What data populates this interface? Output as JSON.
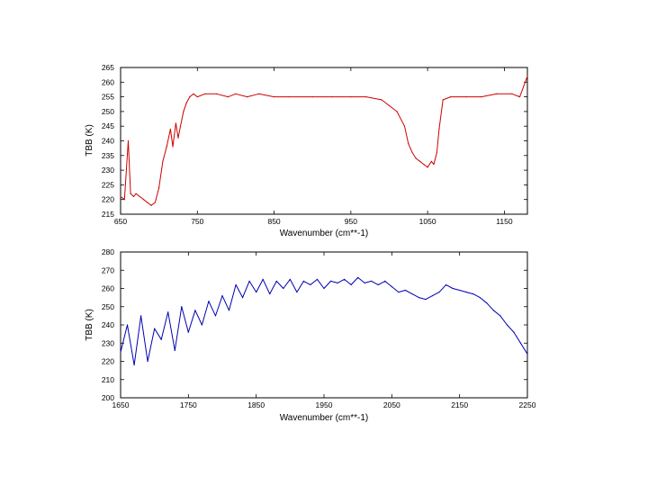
{
  "chart_data": [
    {
      "type": "line",
      "title": "",
      "xlabel": "Wavenumber (cm**-1)",
      "ylabel": "TBB (K)",
      "xlim": [
        650,
        1180
      ],
      "ylim": [
        215,
        265
      ],
      "xticks": [
        650,
        750,
        850,
        950,
        1050,
        1150
      ],
      "yticks": [
        215,
        220,
        225,
        230,
        235,
        240,
        245,
        250,
        255,
        260,
        265
      ],
      "grid": false,
      "legend": "none",
      "series": [
        {
          "color": "#cc0000",
          "x": [
            650,
            655,
            660,
            663,
            667,
            670,
            675,
            680,
            685,
            690,
            695,
            700,
            705,
            710,
            715,
            718,
            722,
            725,
            728,
            732,
            736,
            740,
            745,
            750,
            760,
            775,
            790,
            800,
            815,
            830,
            850,
            870,
            900,
            925,
            950,
            970,
            990,
            1000,
            1010,
            1020,
            1025,
            1030,
            1035,
            1040,
            1045,
            1050,
            1055,
            1058,
            1062,
            1065,
            1070,
            1080,
            1100,
            1120,
            1140,
            1160,
            1170,
            1180
          ],
          "y": [
            221,
            220,
            240,
            222,
            221,
            222,
            221,
            220,
            219,
            218,
            219,
            224,
            233,
            238,
            244,
            238,
            246,
            241,
            245,
            250,
            253,
            255,
            256,
            255,
            256,
            256,
            255,
            256,
            255,
            256,
            255,
            255,
            255,
            255,
            255,
            255,
            254,
            252,
            250,
            245,
            239,
            236,
            234,
            233,
            232,
            231,
            233,
            232,
            236,
            244,
            254,
            255,
            255,
            255,
            256,
            256,
            255,
            262
          ]
        }
      ]
    },
    {
      "type": "line",
      "title": "",
      "xlabel": "Wavenumber (cm**-1)",
      "ylabel": "TBB (K)",
      "xlim": [
        1650,
        2250
      ],
      "ylim": [
        200,
        280
      ],
      "xticks": [
        1650,
        1750,
        1850,
        1950,
        2050,
        2150,
        2250
      ],
      "yticks": [
        200,
        210,
        220,
        230,
        240,
        250,
        260,
        270,
        280
      ],
      "grid": false,
      "legend": "none",
      "series": [
        {
          "color": "#0000b0",
          "x": [
            1650,
            1660,
            1670,
            1680,
            1690,
            1700,
            1710,
            1720,
            1730,
            1740,
            1750,
            1760,
            1770,
            1780,
            1790,
            1800,
            1810,
            1820,
            1830,
            1840,
            1850,
            1860,
            1870,
            1880,
            1890,
            1900,
            1910,
            1920,
            1930,
            1940,
            1950,
            1960,
            1970,
            1980,
            1990,
            2000,
            2010,
            2020,
            2030,
            2040,
            2050,
            2060,
            2070,
            2080,
            2090,
            2100,
            2110,
            2120,
            2130,
            2140,
            2150,
            2160,
            2170,
            2180,
            2190,
            2200,
            2210,
            2220,
            2230,
            2240,
            2250
          ],
          "y": [
            225,
            240,
            218,
            245,
            220,
            238,
            232,
            247,
            226,
            250,
            236,
            248,
            240,
            253,
            245,
            256,
            248,
            262,
            255,
            264,
            258,
            265,
            257,
            264,
            260,
            265,
            258,
            264,
            262,
            265,
            260,
            264,
            263,
            265,
            262,
            266,
            263,
            264,
            262,
            264,
            261,
            258,
            259,
            257,
            255,
            254,
            256,
            258,
            262,
            260,
            259,
            258,
            257,
            255,
            252,
            248,
            245,
            240,
            236,
            230,
            224
          ]
        }
      ]
    }
  ]
}
